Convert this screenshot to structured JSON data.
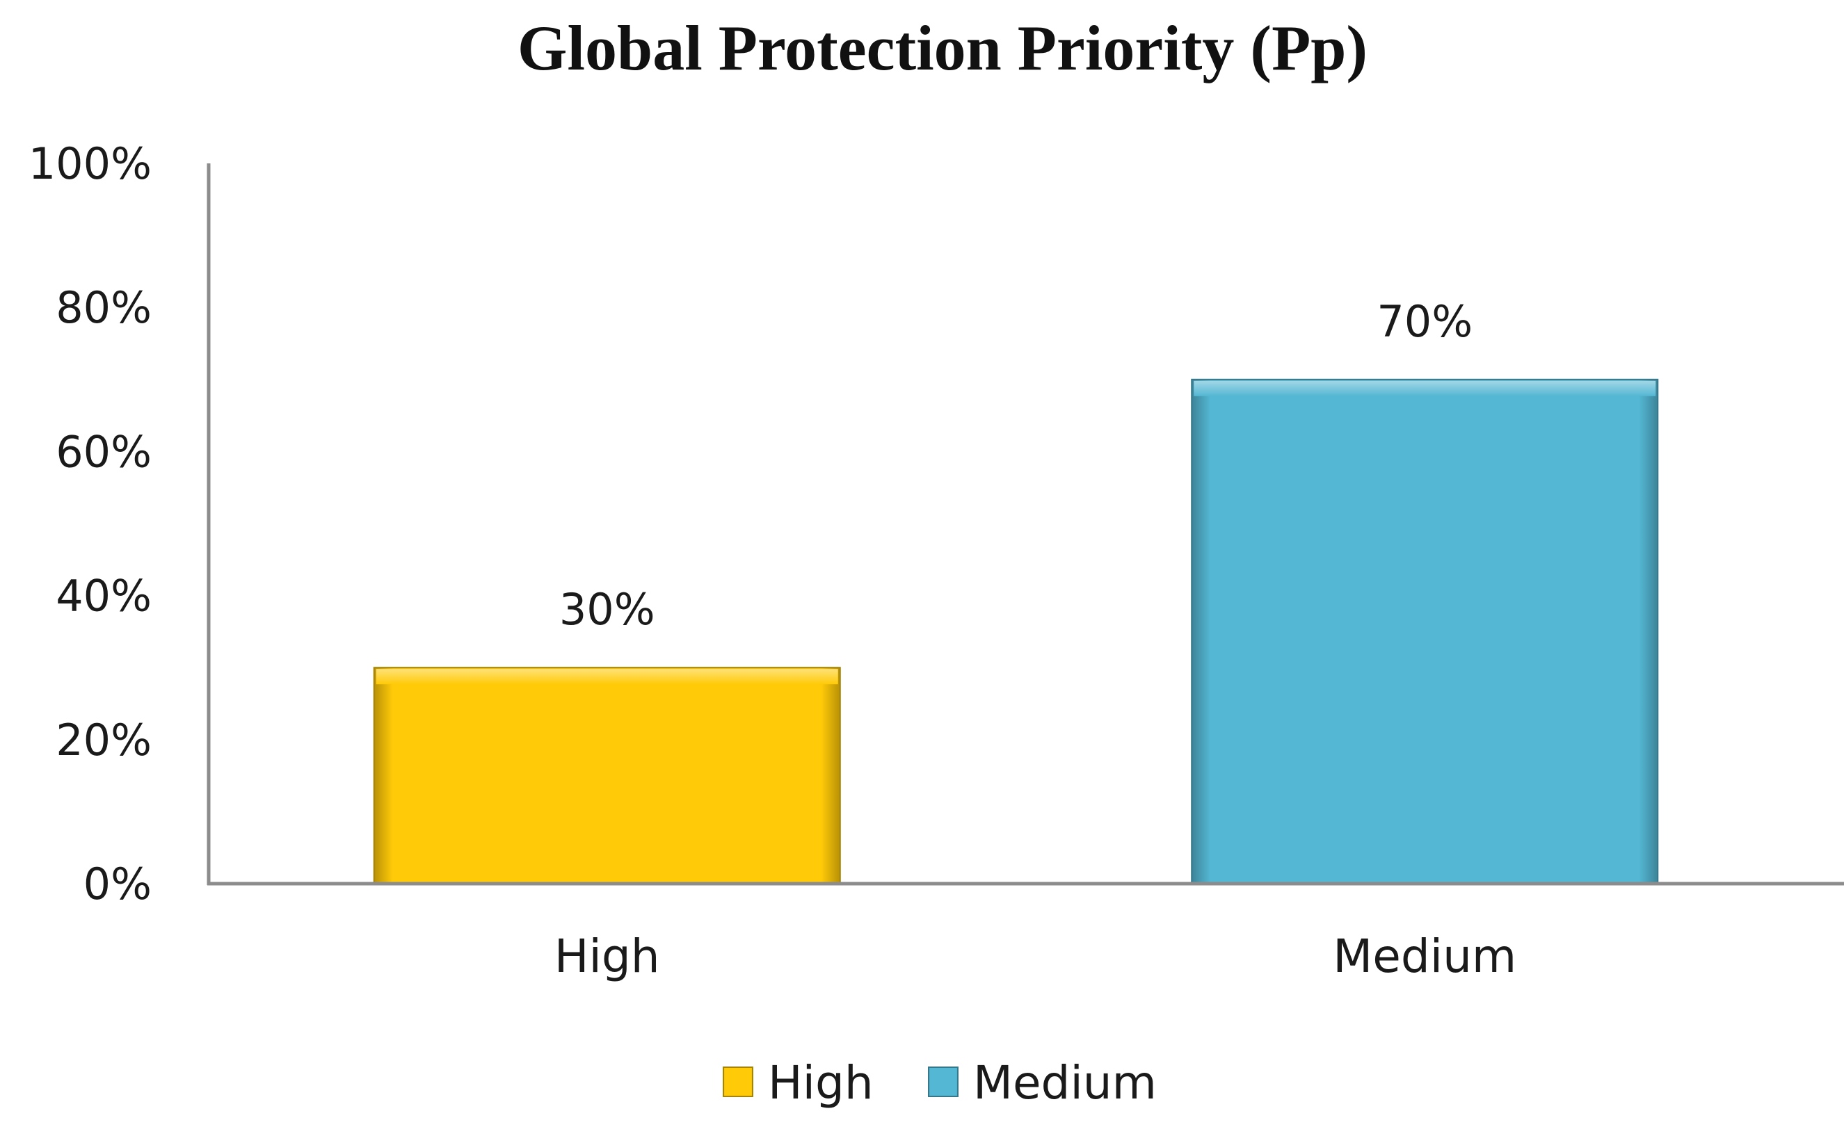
{
  "chart_data": {
    "type": "bar",
    "title": "Global Protection Priority (Pp)",
    "xlabel": "",
    "ylabel": "",
    "categories": [
      "High",
      "Medium"
    ],
    "values": [
      30,
      70
    ],
    "value_labels": [
      "30%",
      "70%"
    ],
    "ylim": [
      0,
      100
    ],
    "yticks": [
      0,
      20,
      40,
      60,
      80,
      100
    ],
    "ytick_labels": [
      "0%",
      "20%",
      "40%",
      "60%",
      "80%",
      "100%"
    ],
    "bar_colors": [
      "#FFCA08",
      "#54B7D3"
    ],
    "legend": {
      "position": "bottom",
      "entries": [
        {
          "label": "High",
          "color": "#FFCA08"
        },
        {
          "label": "Medium",
          "color": "#54B7D3"
        }
      ]
    },
    "grid": false
  }
}
